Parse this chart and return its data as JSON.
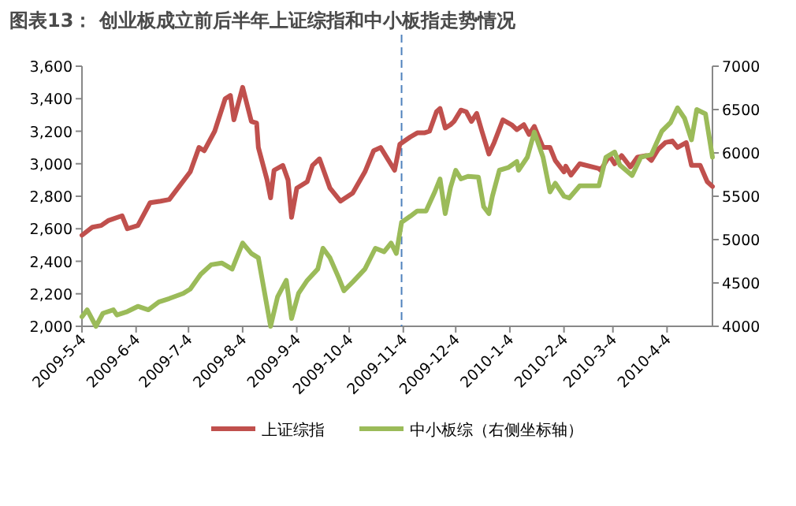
{
  "chart_data": {
    "type": "line",
    "title": "图表13：  创业板成立前后半年上证综指和中小板指走势情况",
    "xlim": [
      "2009-05-04",
      "2010-04-30"
    ],
    "xticks": [
      {
        "value": "2009-05-04",
        "label": "2009-5-4"
      },
      {
        "value": "2009-06-04",
        "label": "2009-6-4"
      },
      {
        "value": "2009-07-04",
        "label": "2009-7-4"
      },
      {
        "value": "2009-08-04",
        "label": "2009-8-4"
      },
      {
        "value": "2009-09-04",
        "label": "2009-9-4"
      },
      {
        "value": "2009-10-04",
        "label": "2009-10-4"
      },
      {
        "value": "2009-11-04",
        "label": "2009-11-4"
      },
      {
        "value": "2009-12-04",
        "label": "2009-12-4"
      },
      {
        "value": "2010-01-04",
        "label": "2010-1-4"
      },
      {
        "value": "2010-02-04",
        "label": "2010-2-4"
      },
      {
        "value": "2010-03-04",
        "label": "2010-3-4"
      },
      {
        "value": "2010-04-04",
        "label": "2010-4-4"
      }
    ],
    "ylim": [
      2000,
      3600
    ],
    "yticks": [
      {
        "value": 2000,
        "label": "2,000"
      },
      {
        "value": 2200,
        "label": "2,200"
      },
      {
        "value": 2400,
        "label": "2,400"
      },
      {
        "value": 2600,
        "label": "2,600"
      },
      {
        "value": 2800,
        "label": "2,800"
      },
      {
        "value": 3000,
        "label": "3,000"
      },
      {
        "value": 3200,
        "label": "3,200"
      },
      {
        "value": 3400,
        "label": "3,400"
      },
      {
        "value": 3600,
        "label": "3,600"
      }
    ],
    "y2lim": [
      4000,
      7000
    ],
    "y2ticks": [
      4000,
      4500,
      5000,
      5500,
      6000,
      6500,
      7000
    ],
    "legend": "bottom",
    "grid": false,
    "marker": "none",
    "line_style": "solid",
    "ref_lines": [
      {
        "axis": "x",
        "value": "2009-11-03",
        "color": "#4f81bd",
        "line_style": "dashed"
      }
    ],
    "series": [
      {
        "name": "上证综指",
        "color": "#c0504d",
        "x": [
          "2009-05-04",
          "2009-05-10",
          "2009-05-15",
          "2009-05-19",
          "2009-05-27",
          "2009-05-30",
          "2009-06-05",
          "2009-06-12",
          "2009-06-18",
          "2009-06-23",
          "2009-07-05",
          "2009-07-10",
          "2009-07-13",
          "2009-07-19",
          "2009-07-25",
          "2009-07-28",
          "2009-07-30",
          "2009-08-04",
          "2009-08-09",
          "2009-08-12",
          "2009-08-13",
          "2009-08-18",
          "2009-08-20",
          "2009-08-22",
          "2009-08-27",
          "2009-08-30",
          "2009-09-01",
          "2009-09-04",
          "2009-09-10",
          "2009-09-13",
          "2009-09-17",
          "2009-09-23",
          "2009-09-29",
          "2009-10-06",
          "2009-10-13",
          "2009-10-18",
          "2009-10-22",
          "2009-10-30",
          "2009-11-02",
          "2009-11-08",
          "2009-11-12",
          "2009-11-16",
          "2009-11-19",
          "2009-11-23",
          "2009-11-25",
          "2009-11-28",
          "2009-12-01",
          "2009-12-03",
          "2009-12-07",
          "2009-12-10",
          "2009-12-13",
          "2009-12-16",
          "2009-12-19",
          "2009-12-23",
          "2009-12-26",
          "2009-12-31",
          "2010-01-05",
          "2010-01-08",
          "2010-01-12",
          "2010-01-15",
          "2010-01-18",
          "2010-01-23",
          "2010-01-27",
          "2010-01-30",
          "2010-02-04",
          "2010-02-05",
          "2010-02-08",
          "2010-02-13",
          "2010-02-24",
          "2010-02-25",
          "2010-03-02",
          "2010-03-05",
          "2010-03-09",
          "2010-03-14",
          "2010-03-18",
          "2010-03-23",
          "2010-03-26",
          "2010-03-30",
          "2010-04-03",
          "2010-04-07",
          "2010-04-10",
          "2010-04-15",
          "2010-04-18",
          "2010-04-23",
          "2010-04-27",
          "2010-04-30"
        ],
        "values": [
          2560,
          2610,
          2620,
          2650,
          2680,
          2600,
          2620,
          2760,
          2770,
          2780,
          2950,
          3100,
          3080,
          3200,
          3400,
          3420,
          3270,
          3470,
          3260,
          3250,
          3100,
          2900,
          2790,
          2960,
          2990,
          2900,
          2670,
          2850,
          2890,
          2990,
          3030,
          2850,
          2770,
          2820,
          2950,
          3080,
          3100,
          2960,
          3120,
          3165,
          3190,
          3190,
          3200,
          3320,
          3340,
          3220,
          3240,
          3260,
          3330,
          3320,
          3260,
          3310,
          3200,
          3060,
          3130,
          3270,
          3240,
          3210,
          3240,
          3180,
          3230,
          3100,
          3100,
          3020,
          2950,
          2985,
          2930,
          3000,
          2970,
          2960,
          3050,
          3000,
          3050,
          2980,
          3040,
          3050,
          3020,
          3090,
          3130,
          3140,
          3100,
          3130,
          2990,
          2990,
          2890,
          2860
        ]
      },
      {
        "name": "中小板综（右侧坐标轴）",
        "color": "#9bbb59",
        "axis": "y2",
        "x": [
          "2009-05-04",
          "2009-05-07",
          "2009-05-12",
          "2009-05-16",
          "2009-05-22",
          "2009-05-24",
          "2009-05-30",
          "2009-06-05",
          "2009-06-11",
          "2009-06-17",
          "2009-06-23",
          "2009-07-01",
          "2009-07-05",
          "2009-07-11",
          "2009-07-17",
          "2009-07-23",
          "2009-07-29",
          "2009-08-04",
          "2009-08-09",
          "2009-08-13",
          "2009-08-20",
          "2009-08-24",
          "2009-08-29",
          "2009-09-01",
          "2009-09-05",
          "2009-09-10",
          "2009-09-16",
          "2009-09-19",
          "2009-09-23",
          "2009-09-28",
          "2009-10-01",
          "2009-10-06",
          "2009-10-13",
          "2009-10-19",
          "2009-10-24",
          "2009-10-28",
          "2009-10-31",
          "2009-11-03",
          "2009-11-08",
          "2009-11-12",
          "2009-11-17",
          "2009-11-22",
          "2009-11-25",
          "2009-11-28",
          "2009-12-01",
          "2009-12-04",
          "2009-12-07",
          "2009-12-11",
          "2009-12-17",
          "2009-12-20",
          "2009-12-23",
          "2009-12-25",
          "2009-12-29",
          "2010-01-03",
          "2010-01-08",
          "2010-01-09",
          "2010-01-14",
          "2010-01-18",
          "2010-01-23",
          "2010-01-27",
          "2010-01-30",
          "2010-02-04",
          "2010-02-07",
          "2010-02-13",
          "2010-02-24",
          "2010-02-28",
          "2010-03-05",
          "2010-03-08",
          "2010-03-15",
          "2010-03-20",
          "2010-03-26",
          "2010-04-01",
          "2010-04-06",
          "2010-04-10",
          "2010-04-14",
          "2010-04-18",
          "2010-04-21",
          "2010-04-26",
          "2010-04-30"
        ],
        "values": [
          4110,
          4190,
          4000,
          4150,
          4190,
          4130,
          4170,
          4230,
          4190,
          4280,
          4320,
          4380,
          4430,
          4600,
          4710,
          4730,
          4660,
          4960,
          4840,
          4790,
          4000,
          4340,
          4530,
          4090,
          4380,
          4530,
          4660,
          4900,
          4790,
          4560,
          4410,
          4510,
          4660,
          4900,
          4860,
          4960,
          4840,
          5200,
          5270,
          5330,
          5330,
          5550,
          5700,
          5300,
          5600,
          5800,
          5700,
          5730,
          5720,
          5380,
          5300,
          5500,
          5800,
          5830,
          5900,
          5800,
          5950,
          6240,
          5950,
          5550,
          5650,
          5500,
          5480,
          5620,
          5620,
          5950,
          6010,
          5860,
          5740,
          5950,
          5980,
          6250,
          6350,
          6520,
          6400,
          6150,
          6500,
          6450,
          5950
        ]
      }
    ]
  }
}
